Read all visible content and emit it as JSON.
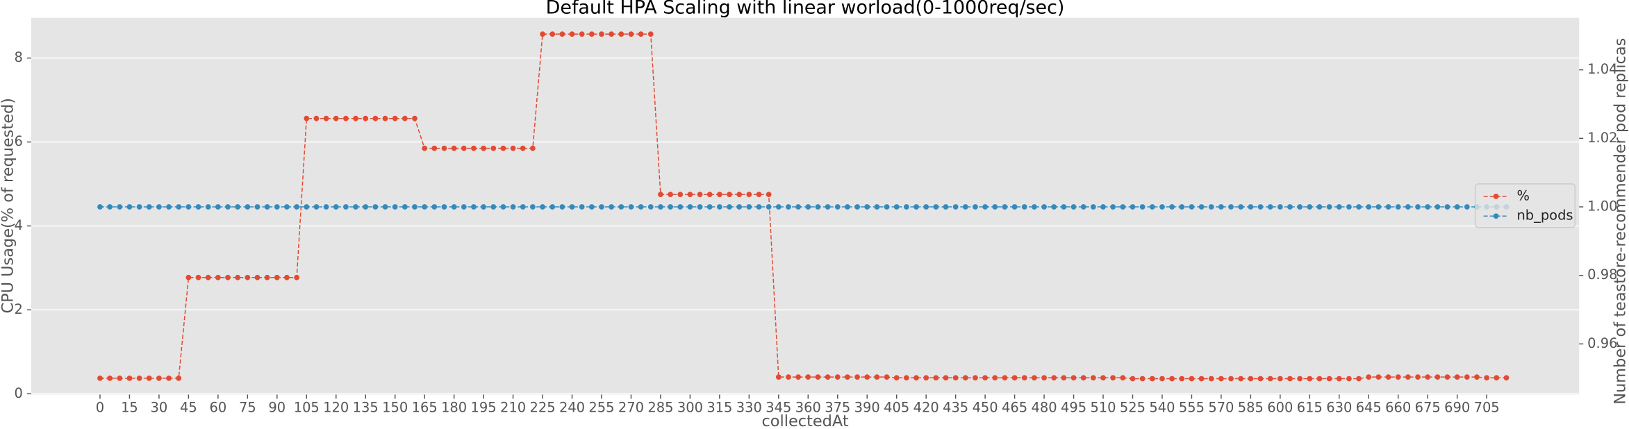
{
  "chart_data": {
    "type": "line",
    "title": "Default HPA Scaling with linear worload(0-1000req/sec)",
    "x_label": "collectedAt",
    "y_label": "CPU Usage(% of requested)",
    "y2_label": "Number of teastore-recommender pod replicas",
    "x": [
      0,
      5,
      10,
      15,
      20,
      25,
      30,
      35,
      40,
      45,
      50,
      55,
      60,
      65,
      70,
      75,
      80,
      85,
      90,
      95,
      100,
      105,
      110,
      115,
      120,
      125,
      130,
      135,
      140,
      145,
      150,
      155,
      160,
      165,
      170,
      175,
      180,
      185,
      190,
      195,
      200,
      205,
      210,
      215,
      220,
      225,
      230,
      235,
      240,
      245,
      250,
      255,
      260,
      265,
      270,
      275,
      280,
      285,
      290,
      295,
      300,
      305,
      310,
      315,
      320,
      325,
      330,
      335,
      340,
      345,
      350,
      355,
      360,
      365,
      370,
      375,
      380,
      385,
      390,
      395,
      400,
      405,
      410,
      415,
      420,
      425,
      430,
      435,
      440,
      445,
      450,
      455,
      460,
      465,
      470,
      475,
      480,
      485,
      490,
      495,
      500,
      505,
      510,
      515,
      520,
      525,
      530,
      535,
      540,
      545,
      550,
      555,
      560,
      565,
      570,
      575,
      580,
      585,
      590,
      595,
      600,
      605,
      610,
      615,
      620,
      625,
      630,
      635,
      640,
      645,
      650,
      655,
      660,
      665,
      670,
      675,
      680,
      685,
      690,
      695,
      700,
      705,
      710,
      715
    ],
    "series": [
      {
        "name": "%",
        "color": "#e24a33",
        "values": [
          0.37,
          0.37,
          0.37,
          0.37,
          0.37,
          0.37,
          0.37,
          0.37,
          0.37,
          2.77,
          2.77,
          2.77,
          2.77,
          2.77,
          2.77,
          2.77,
          2.77,
          2.77,
          2.77,
          2.77,
          2.77,
          6.56,
          6.56,
          6.56,
          6.56,
          6.56,
          6.56,
          6.56,
          6.56,
          6.56,
          6.56,
          6.56,
          6.56,
          5.85,
          5.85,
          5.85,
          5.85,
          5.85,
          5.85,
          5.85,
          5.85,
          5.85,
          5.85,
          5.85,
          5.85,
          8.57,
          8.57,
          8.57,
          8.57,
          8.57,
          8.57,
          8.57,
          8.57,
          8.57,
          8.57,
          8.57,
          8.57,
          4.75,
          4.75,
          4.75,
          4.75,
          4.75,
          4.75,
          4.75,
          4.75,
          4.75,
          4.75,
          4.75,
          4.75,
          0.4,
          0.4,
          0.4,
          0.4,
          0.4,
          0.4,
          0.4,
          0.4,
          0.4,
          0.4,
          0.4,
          0.4,
          0.38,
          0.38,
          0.38,
          0.38,
          0.38,
          0.38,
          0.38,
          0.38,
          0.38,
          0.38,
          0.38,
          0.38,
          0.38,
          0.38,
          0.38,
          0.38,
          0.38,
          0.38,
          0.38,
          0.38,
          0.38,
          0.38,
          0.38,
          0.38,
          0.36,
          0.36,
          0.36,
          0.36,
          0.36,
          0.36,
          0.36,
          0.36,
          0.36,
          0.36,
          0.36,
          0.36,
          0.36,
          0.36,
          0.36,
          0.36,
          0.36,
          0.36,
          0.36,
          0.36,
          0.36,
          0.36,
          0.36,
          0.36,
          0.4,
          0.4,
          0.4,
          0.4,
          0.4,
          0.4,
          0.4,
          0.4,
          0.4,
          0.4,
          0.4,
          0.4,
          0.38,
          0.38,
          0.38
        ]
      },
      {
        "name": "nb_pods",
        "color": "#348abd",
        "axis": "y2",
        "values": [
          1,
          1,
          1,
          1,
          1,
          1,
          1,
          1,
          1,
          1,
          1,
          1,
          1,
          1,
          1,
          1,
          1,
          1,
          1,
          1,
          1,
          1,
          1,
          1,
          1,
          1,
          1,
          1,
          1,
          1,
          1,
          1,
          1,
          1,
          1,
          1,
          1,
          1,
          1,
          1,
          1,
          1,
          1,
          1,
          1,
          1,
          1,
          1,
          1,
          1,
          1,
          1,
          1,
          1,
          1,
          1,
          1,
          1,
          1,
          1,
          1,
          1,
          1,
          1,
          1,
          1,
          1,
          1,
          1,
          1,
          1,
          1,
          1,
          1,
          1,
          1,
          1,
          1,
          1,
          1,
          1,
          1,
          1,
          1,
          1,
          1,
          1,
          1,
          1,
          1,
          1,
          1,
          1,
          1,
          1,
          1,
          1,
          1,
          1,
          1,
          1,
          1,
          1,
          1,
          1,
          1,
          1,
          1,
          1,
          1,
          1,
          1,
          1,
          1,
          1,
          1,
          1,
          1,
          1,
          1,
          1,
          1,
          1,
          1,
          1,
          1,
          1,
          1,
          1,
          1,
          1,
          1,
          1,
          1,
          1,
          1,
          1,
          1,
          1,
          1,
          1,
          1,
          1,
          1
        ]
      }
    ],
    "xlim": [
      -35,
      752
    ],
    "xticks": [
      0,
      15,
      30,
      45,
      60,
      75,
      90,
      105,
      120,
      135,
      150,
      165,
      180,
      195,
      210,
      225,
      240,
      255,
      270,
      285,
      300,
      315,
      330,
      345,
      360,
      375,
      390,
      405,
      420,
      435,
      450,
      465,
      480,
      495,
      510,
      525,
      540,
      555,
      570,
      585,
      600,
      615,
      630,
      645,
      660,
      675,
      690,
      705
    ],
    "ylim": [
      -0.02,
      8.96
    ],
    "yticks": [
      0,
      2,
      4,
      6,
      8
    ],
    "y2lim": [
      0.9452,
      1.0552
    ],
    "y2ticks": [
      0.96,
      0.98,
      {
        "value": 1,
        "label": "1.00"
      },
      1.02,
      1.04
    ],
    "grid": true,
    "legend": "right"
  }
}
